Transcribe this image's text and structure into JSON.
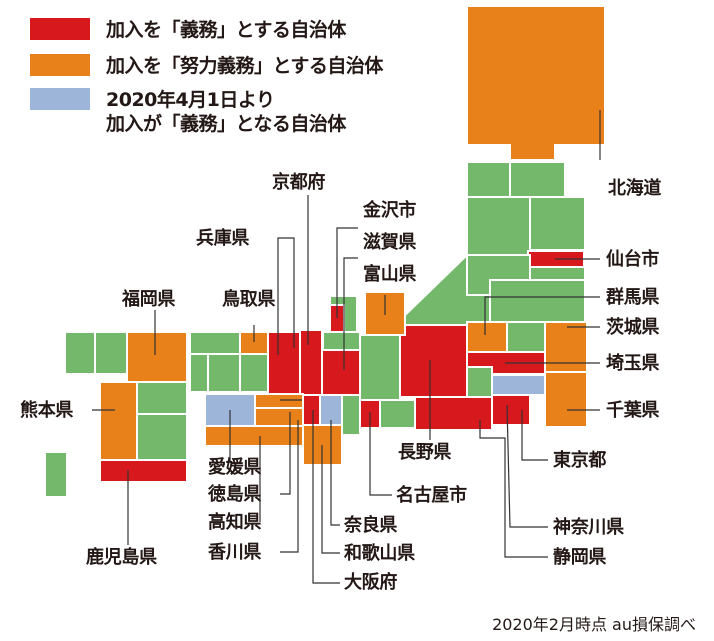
{
  "colors": {
    "mandatory": "#D7191E",
    "effort": "#E8811A",
    "future": "#9CB5D8",
    "none": "#73B86B",
    "leader": "#333333"
  },
  "legend": [
    {
      "key": "mandatory",
      "color": "#D7191E",
      "lines": [
        "加入を「義務」とする自治体"
      ]
    },
    {
      "key": "effort",
      "color": "#E8811A",
      "lines": [
        "加入を「努力義務」とする自治体"
      ]
    },
    {
      "key": "future",
      "color": "#9CB5D8",
      "lines": [
        "2020年4月1日より",
        "加入が「義務」となる自治体"
      ]
    }
  ],
  "labels": {
    "hokkaido": "北海道",
    "sendai": "仙台市",
    "gunma": "群馬県",
    "ibaraki": "茨城県",
    "saitama": "埼玉県",
    "chiba": "千葉県",
    "tokyo": "東京都",
    "kanagawa": "神奈川県",
    "shizuoka": "静岡県",
    "nagano": "長野県",
    "nagoya": "名古屋市",
    "kanazawa": "金沢市",
    "shiga": "滋賀県",
    "toyama": "富山県",
    "kyoto": "京都府",
    "hyogo": "兵庫県",
    "tottori": "鳥取県",
    "fukuoka": "福岡県",
    "kumamoto": "熊本県",
    "kagoshima": "鹿児島県",
    "ehime": "愛媛県",
    "tokushima": "徳島県",
    "kochi": "高知県",
    "kagawa": "香川県",
    "nara": "奈良県",
    "wakayama": "和歌山県",
    "osaka": "大阪府"
  },
  "note": "2020年2月時点 au損保調べ"
}
